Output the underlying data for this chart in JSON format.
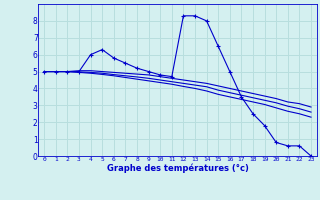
{
  "xlabel": "Graphe des températures (°c)",
  "background_color": "#d4f0f0",
  "grid_color": "#b8dede",
  "line_color": "#0000cc",
  "x_ticks": [
    0,
    1,
    2,
    3,
    4,
    5,
    6,
    7,
    8,
    9,
    10,
    11,
    12,
    13,
    14,
    15,
    16,
    17,
    18,
    19,
    20,
    21,
    22,
    23
  ],
  "x_labels": [
    "0",
    "1",
    "2",
    "3",
    "4",
    "5",
    "6",
    "7",
    "8",
    "9",
    "10",
    "11",
    "12",
    "13",
    "14",
    "15",
    "16",
    "17",
    "18",
    "19",
    "20",
    "21",
    "22",
    "23"
  ],
  "ylim": [
    0,
    9
  ],
  "y_ticks": [
    0,
    1,
    2,
    3,
    4,
    5,
    6,
    7,
    8
  ],
  "series": [
    {
      "x": [
        0,
        1,
        2,
        3,
        4,
        5,
        6,
        7,
        8,
        9,
        10,
        11,
        12,
        13,
        14,
        15,
        16,
        17,
        18,
        19,
        20,
        21,
        22,
        23
      ],
      "y": [
        5.0,
        5.0,
        5.0,
        5.0,
        6.0,
        6.3,
        5.8,
        5.5,
        5.2,
        5.0,
        4.8,
        4.7,
        8.3,
        8.3,
        8.0,
        6.5,
        5.0,
        3.5,
        2.5,
        1.8,
        0.8,
        0.6,
        0.6,
        0.0
      ],
      "marker": "+"
    },
    {
      "x": [
        0,
        1,
        2,
        3,
        4,
        5,
        6,
        7,
        8,
        9,
        10,
        11,
        12,
        13,
        14,
        15,
        16,
        17,
        18,
        19,
        20,
        21,
        22,
        23
      ],
      "y": [
        5.0,
        5.0,
        5.0,
        5.05,
        5.05,
        5.0,
        4.95,
        4.9,
        4.85,
        4.8,
        4.7,
        4.6,
        4.5,
        4.4,
        4.3,
        4.15,
        4.0,
        3.85,
        3.7,
        3.55,
        3.4,
        3.2,
        3.1,
        2.9
      ],
      "marker": null
    },
    {
      "x": [
        0,
        1,
        2,
        3,
        4,
        5,
        6,
        7,
        8,
        9,
        10,
        11,
        12,
        13,
        14,
        15,
        16,
        17,
        18,
        19,
        20,
        21,
        22,
        23
      ],
      "y": [
        5.0,
        5.0,
        5.0,
        4.98,
        4.95,
        4.9,
        4.82,
        4.75,
        4.68,
        4.6,
        4.5,
        4.4,
        4.3,
        4.2,
        4.1,
        3.9,
        3.75,
        3.6,
        3.45,
        3.3,
        3.15,
        2.95,
        2.8,
        2.6
      ],
      "marker": null
    },
    {
      "x": [
        0,
        1,
        2,
        3,
        4,
        5,
        6,
        7,
        8,
        9,
        10,
        11,
        12,
        13,
        14,
        15,
        16,
        17,
        18,
        19,
        20,
        21,
        22,
        23
      ],
      "y": [
        5.0,
        5.0,
        5.0,
        4.95,
        4.9,
        4.83,
        4.75,
        4.65,
        4.55,
        4.45,
        4.35,
        4.25,
        4.12,
        4.0,
        3.85,
        3.65,
        3.5,
        3.35,
        3.2,
        3.05,
        2.85,
        2.65,
        2.5,
        2.3
      ],
      "marker": null
    }
  ]
}
